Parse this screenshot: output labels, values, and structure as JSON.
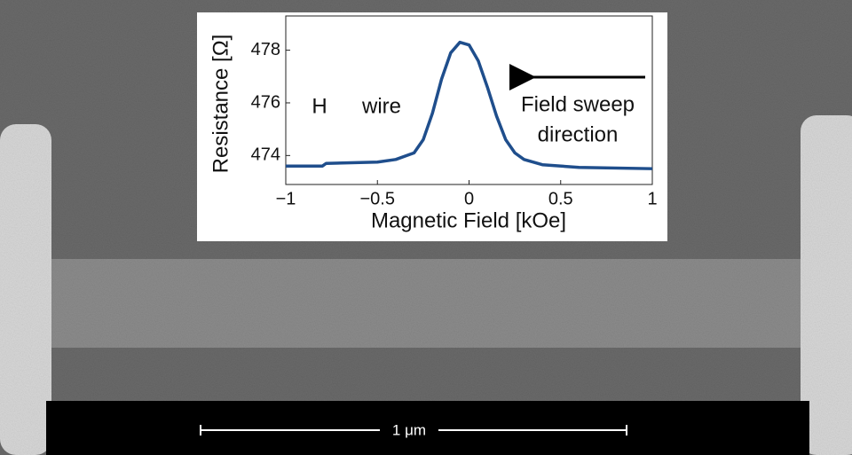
{
  "chart_data": {
    "type": "line",
    "xlabel": "Magnetic Field [kOe]",
    "ylabel": "Resistance [Ω]",
    "annotations": [
      "H",
      "wire",
      "Field sweep",
      "direction"
    ],
    "xlim": [
      -1,
      1
    ],
    "xticks": [
      {
        "value": -1,
        "label": "−1"
      },
      {
        "value": -0.5,
        "label": "−0.5"
      },
      0,
      0.5,
      1
    ],
    "ylim": [
      472.9,
      479.3
    ],
    "yticks": [
      474,
      476,
      478
    ],
    "series": [
      {
        "color": "#1f4e8c",
        "x": [
          -1,
          -0.8,
          -0.78,
          -0.5,
          -0.4,
          -0.3,
          -0.25,
          -0.2,
          -0.15,
          -0.1,
          -0.05,
          0,
          0.05,
          0.1,
          0.15,
          0.2,
          0.25,
          0.3,
          0.4,
          0.6,
          1
        ],
        "values": [
          473.6,
          473.6,
          473.7,
          473.75,
          473.85,
          474.1,
          474.6,
          475.6,
          476.9,
          477.9,
          478.3,
          478.2,
          477.6,
          476.6,
          475.5,
          474.6,
          474.1,
          473.85,
          473.65,
          473.55,
          473.5
        ]
      }
    ]
  },
  "scale_bar_label": "1 μm"
}
